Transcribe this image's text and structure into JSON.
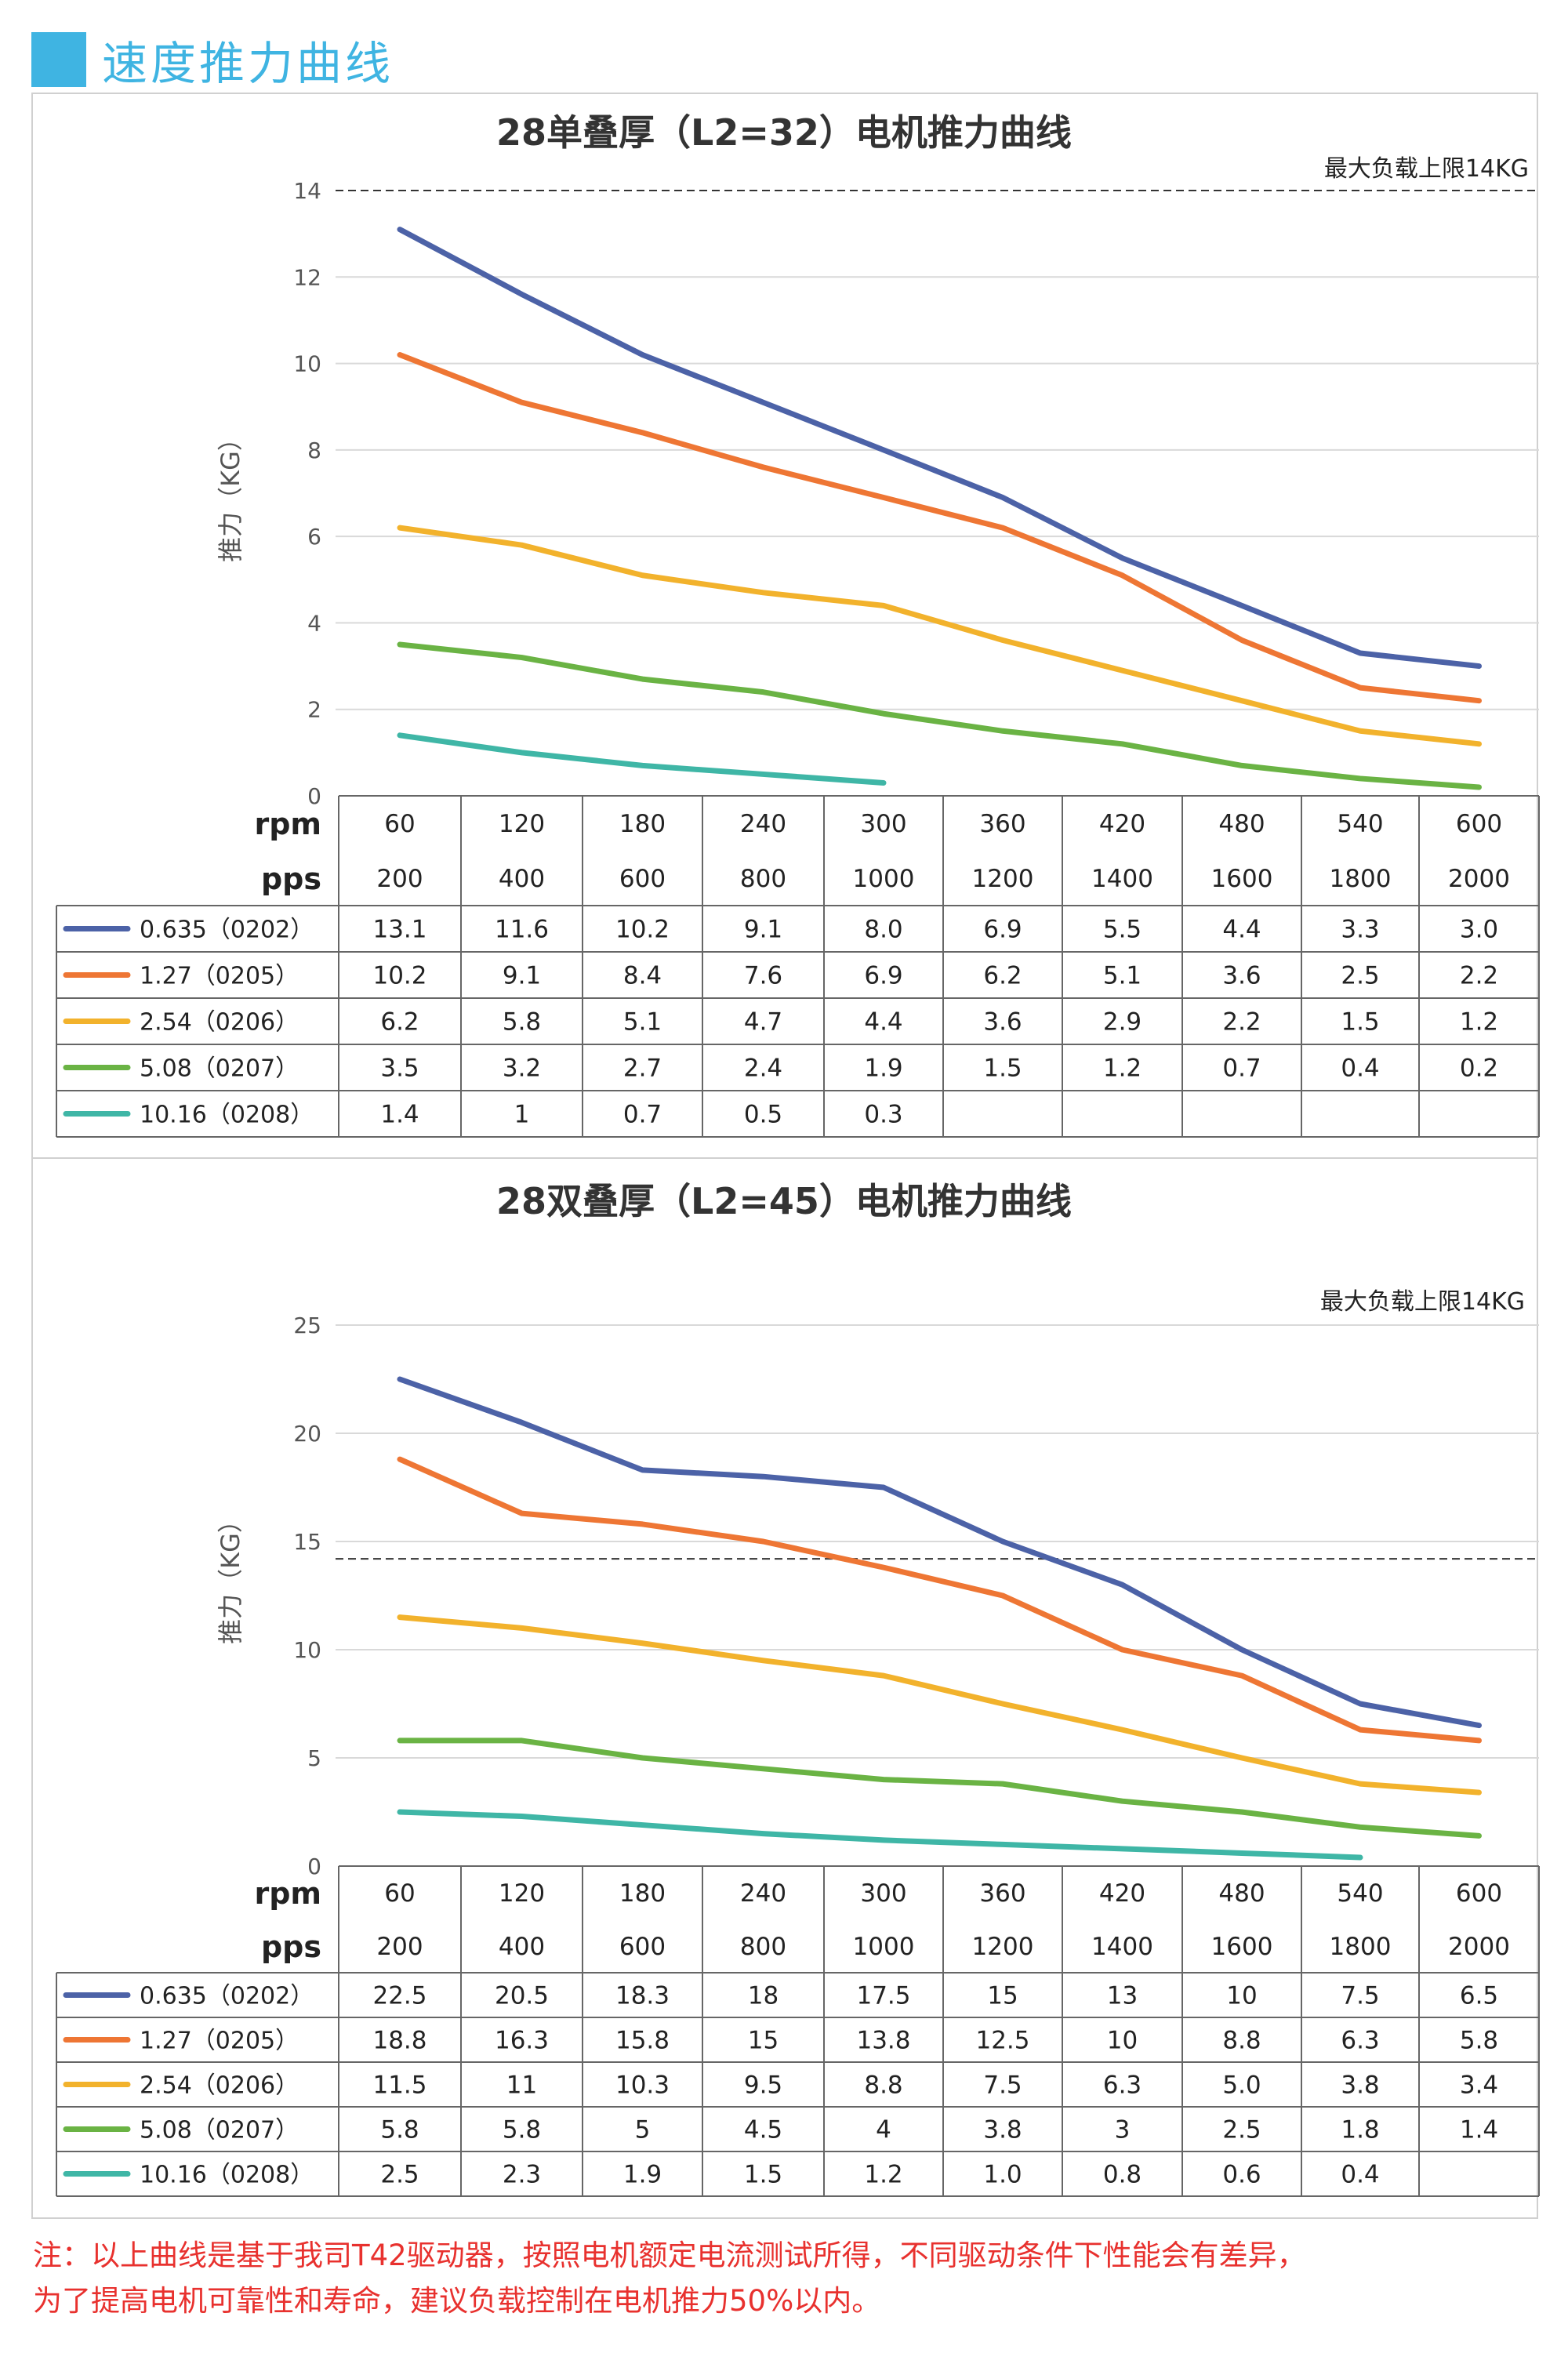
{
  "header": {
    "title": "速度推力曲线"
  },
  "colors": {
    "accent": "#3fb4e2",
    "series": [
      "#4c62a7",
      "#ee7634",
      "#f2b22c",
      "#6ab344",
      "#3fb6a6"
    ],
    "note_text": "#e8312e",
    "grid": "#d9d9d9",
    "table_border": "#666666"
  },
  "charts": [
    {
      "title": "28单叠厚（L2=32）电机推力曲线",
      "ylabel": "推力（KG）",
      "limit_label": "最大负载上限14KG",
      "limit_value": 14,
      "rpm_label": "rpm",
      "pps_label": "pps",
      "rpm": [
        "60",
        "120",
        "180",
        "240",
        "300",
        "360",
        "420",
        "480",
        "540",
        "600"
      ],
      "pps": [
        "200",
        "400",
        "600",
        "800",
        "1000",
        "1200",
        "1400",
        "1600",
        "1800",
        "2000"
      ]
    },
    {
      "title": "28双叠厚（L2=45）电机推力曲线",
      "ylabel": "推力（KG）",
      "limit_label": "最大负载上限14KG",
      "limit_value": 14.2,
      "rpm_label": "rpm",
      "pps_label": "pps",
      "rpm": [
        "60",
        "120",
        "180",
        "240",
        "300",
        "360",
        "420",
        "480",
        "540",
        "600"
      ],
      "pps": [
        "200",
        "400",
        "600",
        "800",
        "1000",
        "1200",
        "1400",
        "1600",
        "1800",
        "2000"
      ]
    }
  ],
  "chart_data": [
    {
      "type": "line",
      "title": "28单叠厚（L2=32）电机推力曲线",
      "ylabel": "推力（KG）",
      "ylim": [
        0,
        14
      ],
      "yticks": [
        "0",
        "2",
        "4",
        "6",
        "8",
        "10",
        "12",
        "14"
      ],
      "x": [
        "60",
        "120",
        "180",
        "240",
        "300",
        "360",
        "420",
        "480",
        "540",
        "600"
      ],
      "grid": true,
      "series": [
        {
          "name": "0.635（0202）",
          "values": [
            "13.1",
            "11.6",
            "10.2",
            "9.1",
            "8.0",
            "6.9",
            "5.5",
            "4.4",
            "3.3",
            "3.0"
          ]
        },
        {
          "name": "1.27（0205）",
          "values": [
            "10.2",
            "9.1",
            "8.4",
            "7.6",
            "6.9",
            "6.2",
            "5.1",
            "3.6",
            "2.5",
            "2.2"
          ]
        },
        {
          "name": "2.54（0206）",
          "values": [
            "6.2",
            "5.8",
            "5.1",
            "4.7",
            "4.4",
            "3.6",
            "2.9",
            "2.2",
            "1.5",
            "1.2"
          ]
        },
        {
          "name": "5.08（0207）",
          "values": [
            "3.5",
            "3.2",
            "2.7",
            "2.4",
            "1.9",
            "1.5",
            "1.2",
            "0.7",
            "0.4",
            "0.2"
          ]
        },
        {
          "name": "10.16（0208）",
          "values": [
            "1.4",
            "1",
            "0.7",
            "0.5",
            "0.3",
            "",
            "",
            "",
            "",
            ""
          ]
        }
      ]
    },
    {
      "type": "line",
      "title": "28双叠厚（L2=45）电机推力曲线",
      "ylabel": "推力（KG）",
      "ylim": [
        0,
        25
      ],
      "yticks": [
        "0",
        "5",
        "10",
        "15",
        "20",
        "25"
      ],
      "x": [
        "60",
        "120",
        "180",
        "240",
        "300",
        "360",
        "420",
        "480",
        "540",
        "600"
      ],
      "grid": true,
      "series": [
        {
          "name": "0.635（0202）",
          "values": [
            "22.5",
            "20.5",
            "18.3",
            "18",
            "17.5",
            "15",
            "13",
            "10",
            "7.5",
            "6.5"
          ]
        },
        {
          "name": "1.27（0205）",
          "values": [
            "18.8",
            "16.3",
            "15.8",
            "15",
            "13.8",
            "12.5",
            "10",
            "8.8",
            "6.3",
            "5.8"
          ]
        },
        {
          "name": "2.54（0206）",
          "values": [
            "11.5",
            "11",
            "10.3",
            "9.5",
            "8.8",
            "7.5",
            "6.3",
            "5.0",
            "3.8",
            "3.4"
          ]
        },
        {
          "name": "5.08（0207）",
          "values": [
            "5.8",
            "5.8",
            "5",
            "4.5",
            "4",
            "3.8",
            "3",
            "2.5",
            "1.8",
            "1.4"
          ]
        },
        {
          "name": "10.16（0208）",
          "values": [
            "2.5",
            "2.3",
            "1.9",
            "1.5",
            "1.2",
            "1.0",
            "0.8",
            "0.6",
            "0.4",
            ""
          ]
        }
      ]
    }
  ],
  "note": {
    "line1": "注：以上曲线是基于我司T42驱动器，按照电机额定电流测试所得，不同驱动条件下性能会有差异，",
    "line2": "为了提高电机可靠性和寿命，建议负载控制在电机推力50%以内。"
  }
}
